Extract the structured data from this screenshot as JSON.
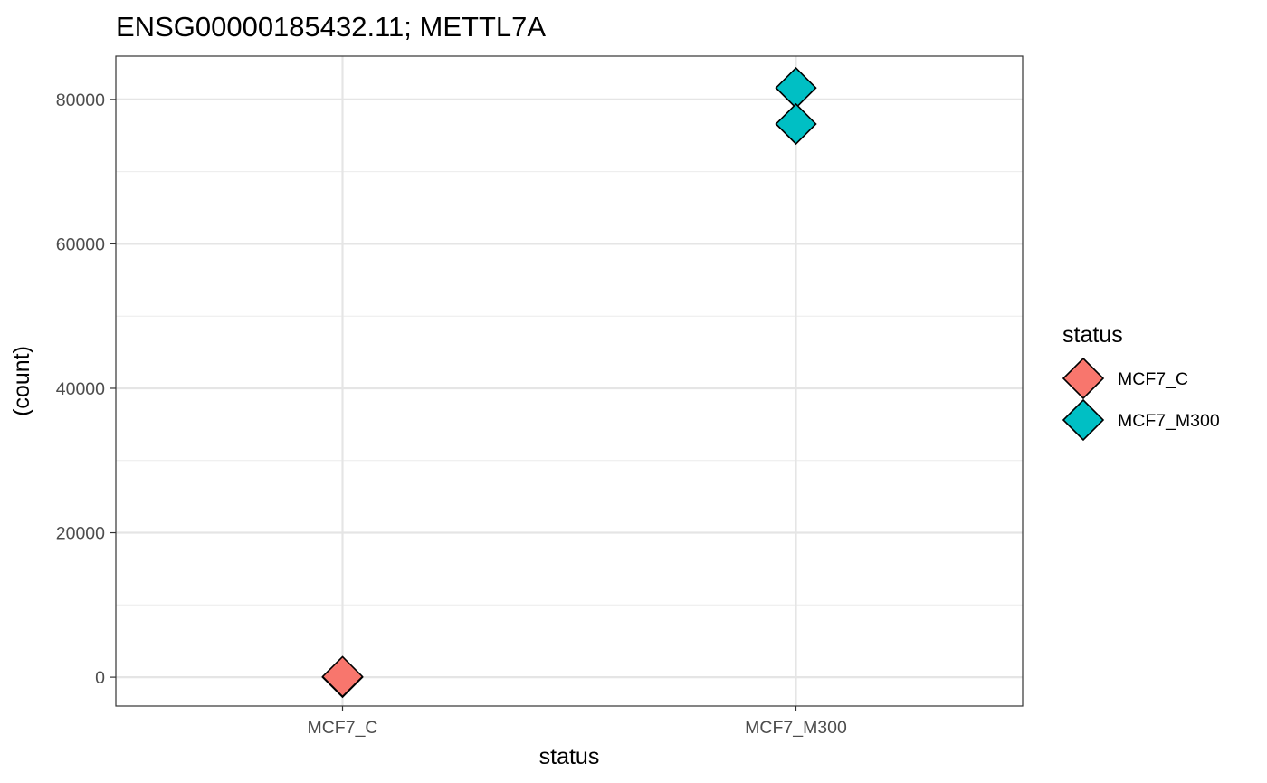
{
  "chart_data": {
    "type": "scatter",
    "title": "ENSG00000185432.11; METTL7A",
    "xlabel": "status",
    "ylabel": "(count)",
    "categories": [
      "MCF7_C",
      "MCF7_M300"
    ],
    "ylim": [
      -4000,
      86000
    ],
    "yticks": [
      0,
      20000,
      40000,
      60000,
      80000
    ],
    "y_minor_ticks": [
      10000,
      30000,
      50000,
      70000
    ],
    "grid": true,
    "legend": {
      "title": "status",
      "placement": "right",
      "entries": [
        {
          "label": "MCF7_C",
          "color": "#F8766D"
        },
        {
          "label": "MCF7_M300",
          "color": "#00BFC4"
        }
      ]
    },
    "series": [
      {
        "category": "MCF7_C",
        "color": "#F8766D",
        "values": [
          0,
          80
        ]
      },
      {
        "category": "MCF7_M300",
        "color": "#00BFC4",
        "values": [
          81600,
          76600
        ]
      }
    ],
    "marker": "diamond"
  }
}
